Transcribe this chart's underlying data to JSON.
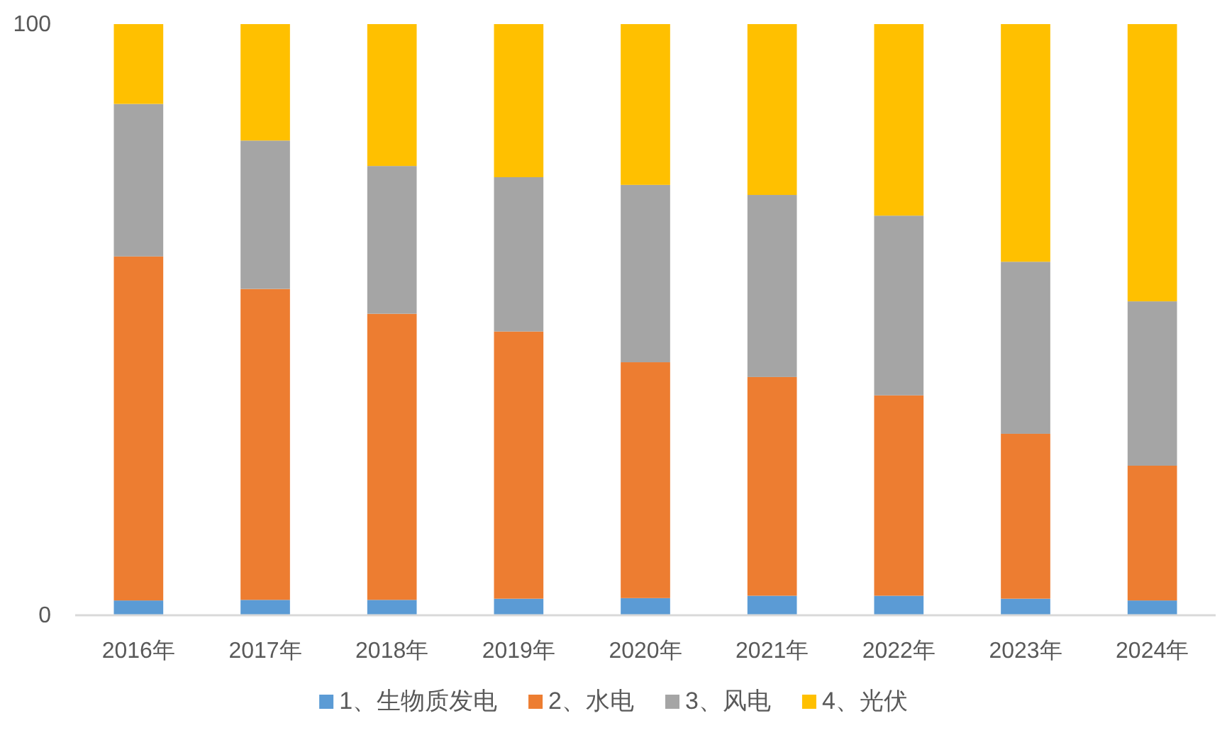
{
  "chart_data": {
    "type": "bar",
    "stacked": true,
    "categories": [
      "2016年",
      "2017年",
      "2018年",
      "2019年",
      "2020年",
      "2021年",
      "2022年",
      "2023年",
      "2024年"
    ],
    "ylim": [
      0,
      100
    ],
    "yticks": [
      0,
      100
    ],
    "grid": false,
    "legend": "bottom",
    "series": [
      {
        "name": "1、生物质发电",
        "color": "#5b9bd5",
        "values": [
          2.5,
          2.6,
          2.6,
          2.8,
          2.9,
          3.3,
          3.3,
          2.8,
          2.5
        ]
      },
      {
        "name": "2、水电",
        "color": "#ed7d31",
        "values": [
          58.2,
          52.6,
          48.4,
          45.2,
          39.9,
          37.0,
          33.9,
          27.9,
          22.8
        ]
      },
      {
        "name": "3、风电",
        "color": "#a5a5a5",
        "values": [
          25.8,
          25.1,
          25.0,
          26.1,
          30.0,
          30.8,
          30.4,
          29.1,
          27.8
        ]
      },
      {
        "name": "4、光伏",
        "color": "#ffc000",
        "values": [
          13.5,
          19.7,
          24.0,
          25.9,
          27.2,
          28.9,
          32.4,
          40.2,
          46.9
        ]
      }
    ]
  }
}
